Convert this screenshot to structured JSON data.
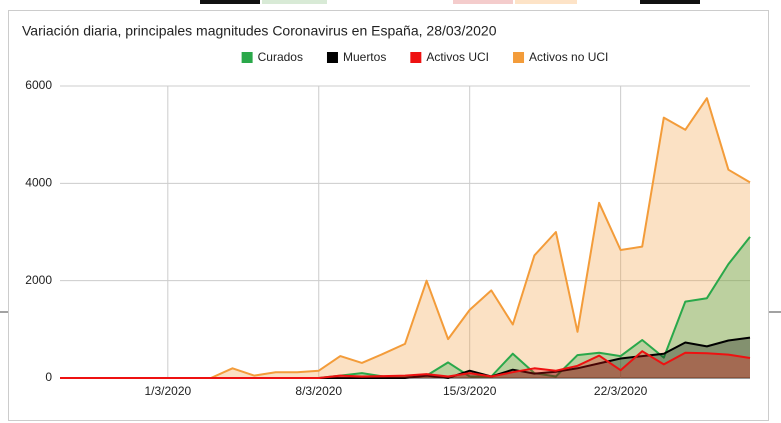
{
  "chart_data": {
    "type": "area",
    "title": "Variación diaria, principales magnitudes Coronavirus en España, 28/03/2020",
    "categories": [
      null,
      null,
      null,
      null,
      null,
      "1/3/2020",
      null,
      null,
      null,
      null,
      null,
      null,
      "8/3/2020",
      null,
      null,
      null,
      null,
      null,
      null,
      "15/3/2020",
      null,
      null,
      null,
      null,
      null,
      null,
      "22/3/2020",
      null,
      null,
      null,
      null,
      null,
      null
    ],
    "series": [
      {
        "name": "Activos no UCI",
        "color": "#f39c3a",
        "values": [
          0,
          0,
          0,
          0,
          0,
          0,
          0,
          0,
          200,
          50,
          120,
          120,
          150,
          450,
          310,
          500,
          700,
          2000,
          800,
          1400,
          1800,
          1100,
          2520,
          3000,
          950,
          3600,
          2630,
          2700,
          5350,
          5100,
          5750,
          4280,
          4020
        ]
      },
      {
        "name": "Curados",
        "color": "#2aa84a",
        "values": [
          0,
          0,
          0,
          0,
          0,
          0,
          0,
          0,
          0,
          0,
          0,
          0,
          0,
          50,
          100,
          30,
          30,
          50,
          320,
          30,
          30,
          500,
          100,
          30,
          470,
          520,
          450,
          780,
          420,
          1570,
          1640,
          2340,
          2900
        ]
      },
      {
        "name": "Muertos",
        "color": "#000000",
        "values": [
          0,
          0,
          0,
          0,
          0,
          0,
          0,
          0,
          0,
          0,
          0,
          0,
          0,
          0,
          0,
          0,
          0,
          50,
          0,
          150,
          30,
          170,
          90,
          130,
          200,
          300,
          400,
          450,
          500,
          730,
          650,
          770,
          830
        ]
      },
      {
        "name": "Activos UCI",
        "color": "#ee1111",
        "values": [
          0,
          0,
          0,
          0,
          0,
          0,
          0,
          0,
          0,
          0,
          0,
          0,
          0,
          50,
          30,
          40,
          50,
          80,
          30,
          100,
          30,
          120,
          200,
          150,
          250,
          460,
          160,
          550,
          280,
          520,
          510,
          480,
          410
        ]
      }
    ],
    "legend_order": [
      1,
      2,
      3,
      0
    ],
    "ylim": [
      0,
      6000
    ],
    "yticks": [
      0,
      2000,
      4000,
      6000
    ],
    "grid": true
  }
}
